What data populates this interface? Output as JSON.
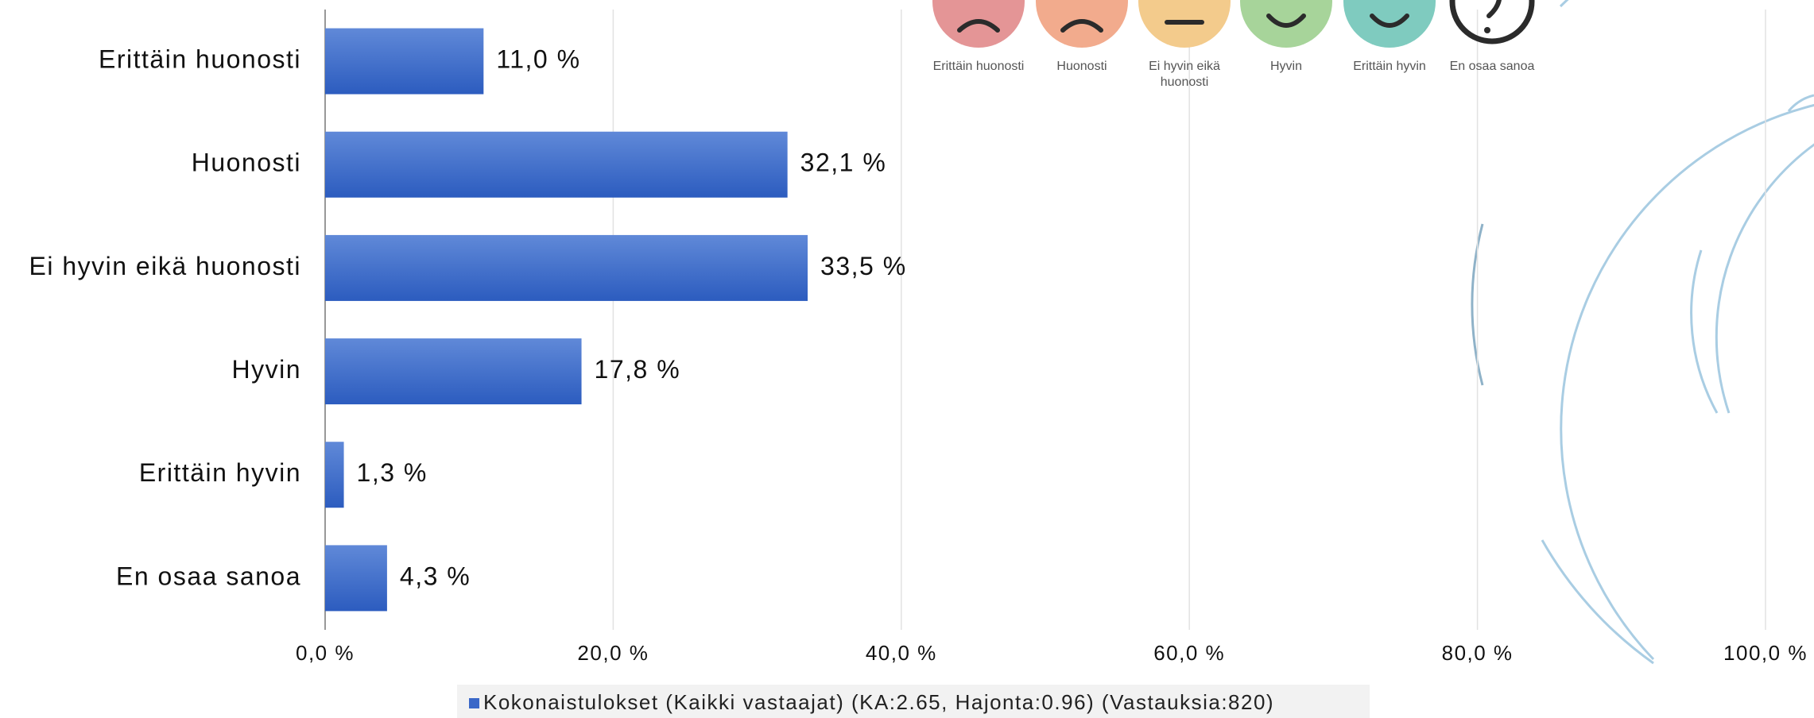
{
  "chart_data": {
    "type": "hbar",
    "categories": [
      "Erittäin huonosti",
      "Huonosti",
      "Ei hyvin eikä huonosti",
      "Hyvin",
      "Erittäin hyvin",
      "En osaa sanoa"
    ],
    "series": [
      {
        "name": "Kokonaistulokset (Kaikki vastaajat) (KA:2.65, Hajonta:0.96) (Vastauksia:820)",
        "color": "#3a68c8",
        "values": [
          11.0,
          32.1,
          33.5,
          17.8,
          1.3,
          4.3
        ],
        "value_labels": [
          "11,0 %",
          "32,1 %",
          "33,5 %",
          "17,8 %",
          "1,3 %",
          "4,3 %"
        ]
      }
    ],
    "xlim": [
      0,
      100
    ],
    "xticks": [
      {
        "value": 0,
        "label": "0,0 %"
      },
      {
        "value": 20,
        "label": "20,0 %"
      },
      {
        "value": 40,
        "label": "40,0 %"
      },
      {
        "value": 60,
        "label": "60,0 %"
      },
      {
        "value": 80,
        "label": "80,0 %"
      },
      {
        "value": 100,
        "label": "100,0 %"
      }
    ],
    "grid": true,
    "legend": "bottom",
    "icon_labels": [
      "Erittäin huonosti",
      "Huonosti",
      "Ei hyvin eikä huonosti",
      "Hyvin",
      "Erittäin hyvin",
      "En osaa sanoa"
    ]
  }
}
